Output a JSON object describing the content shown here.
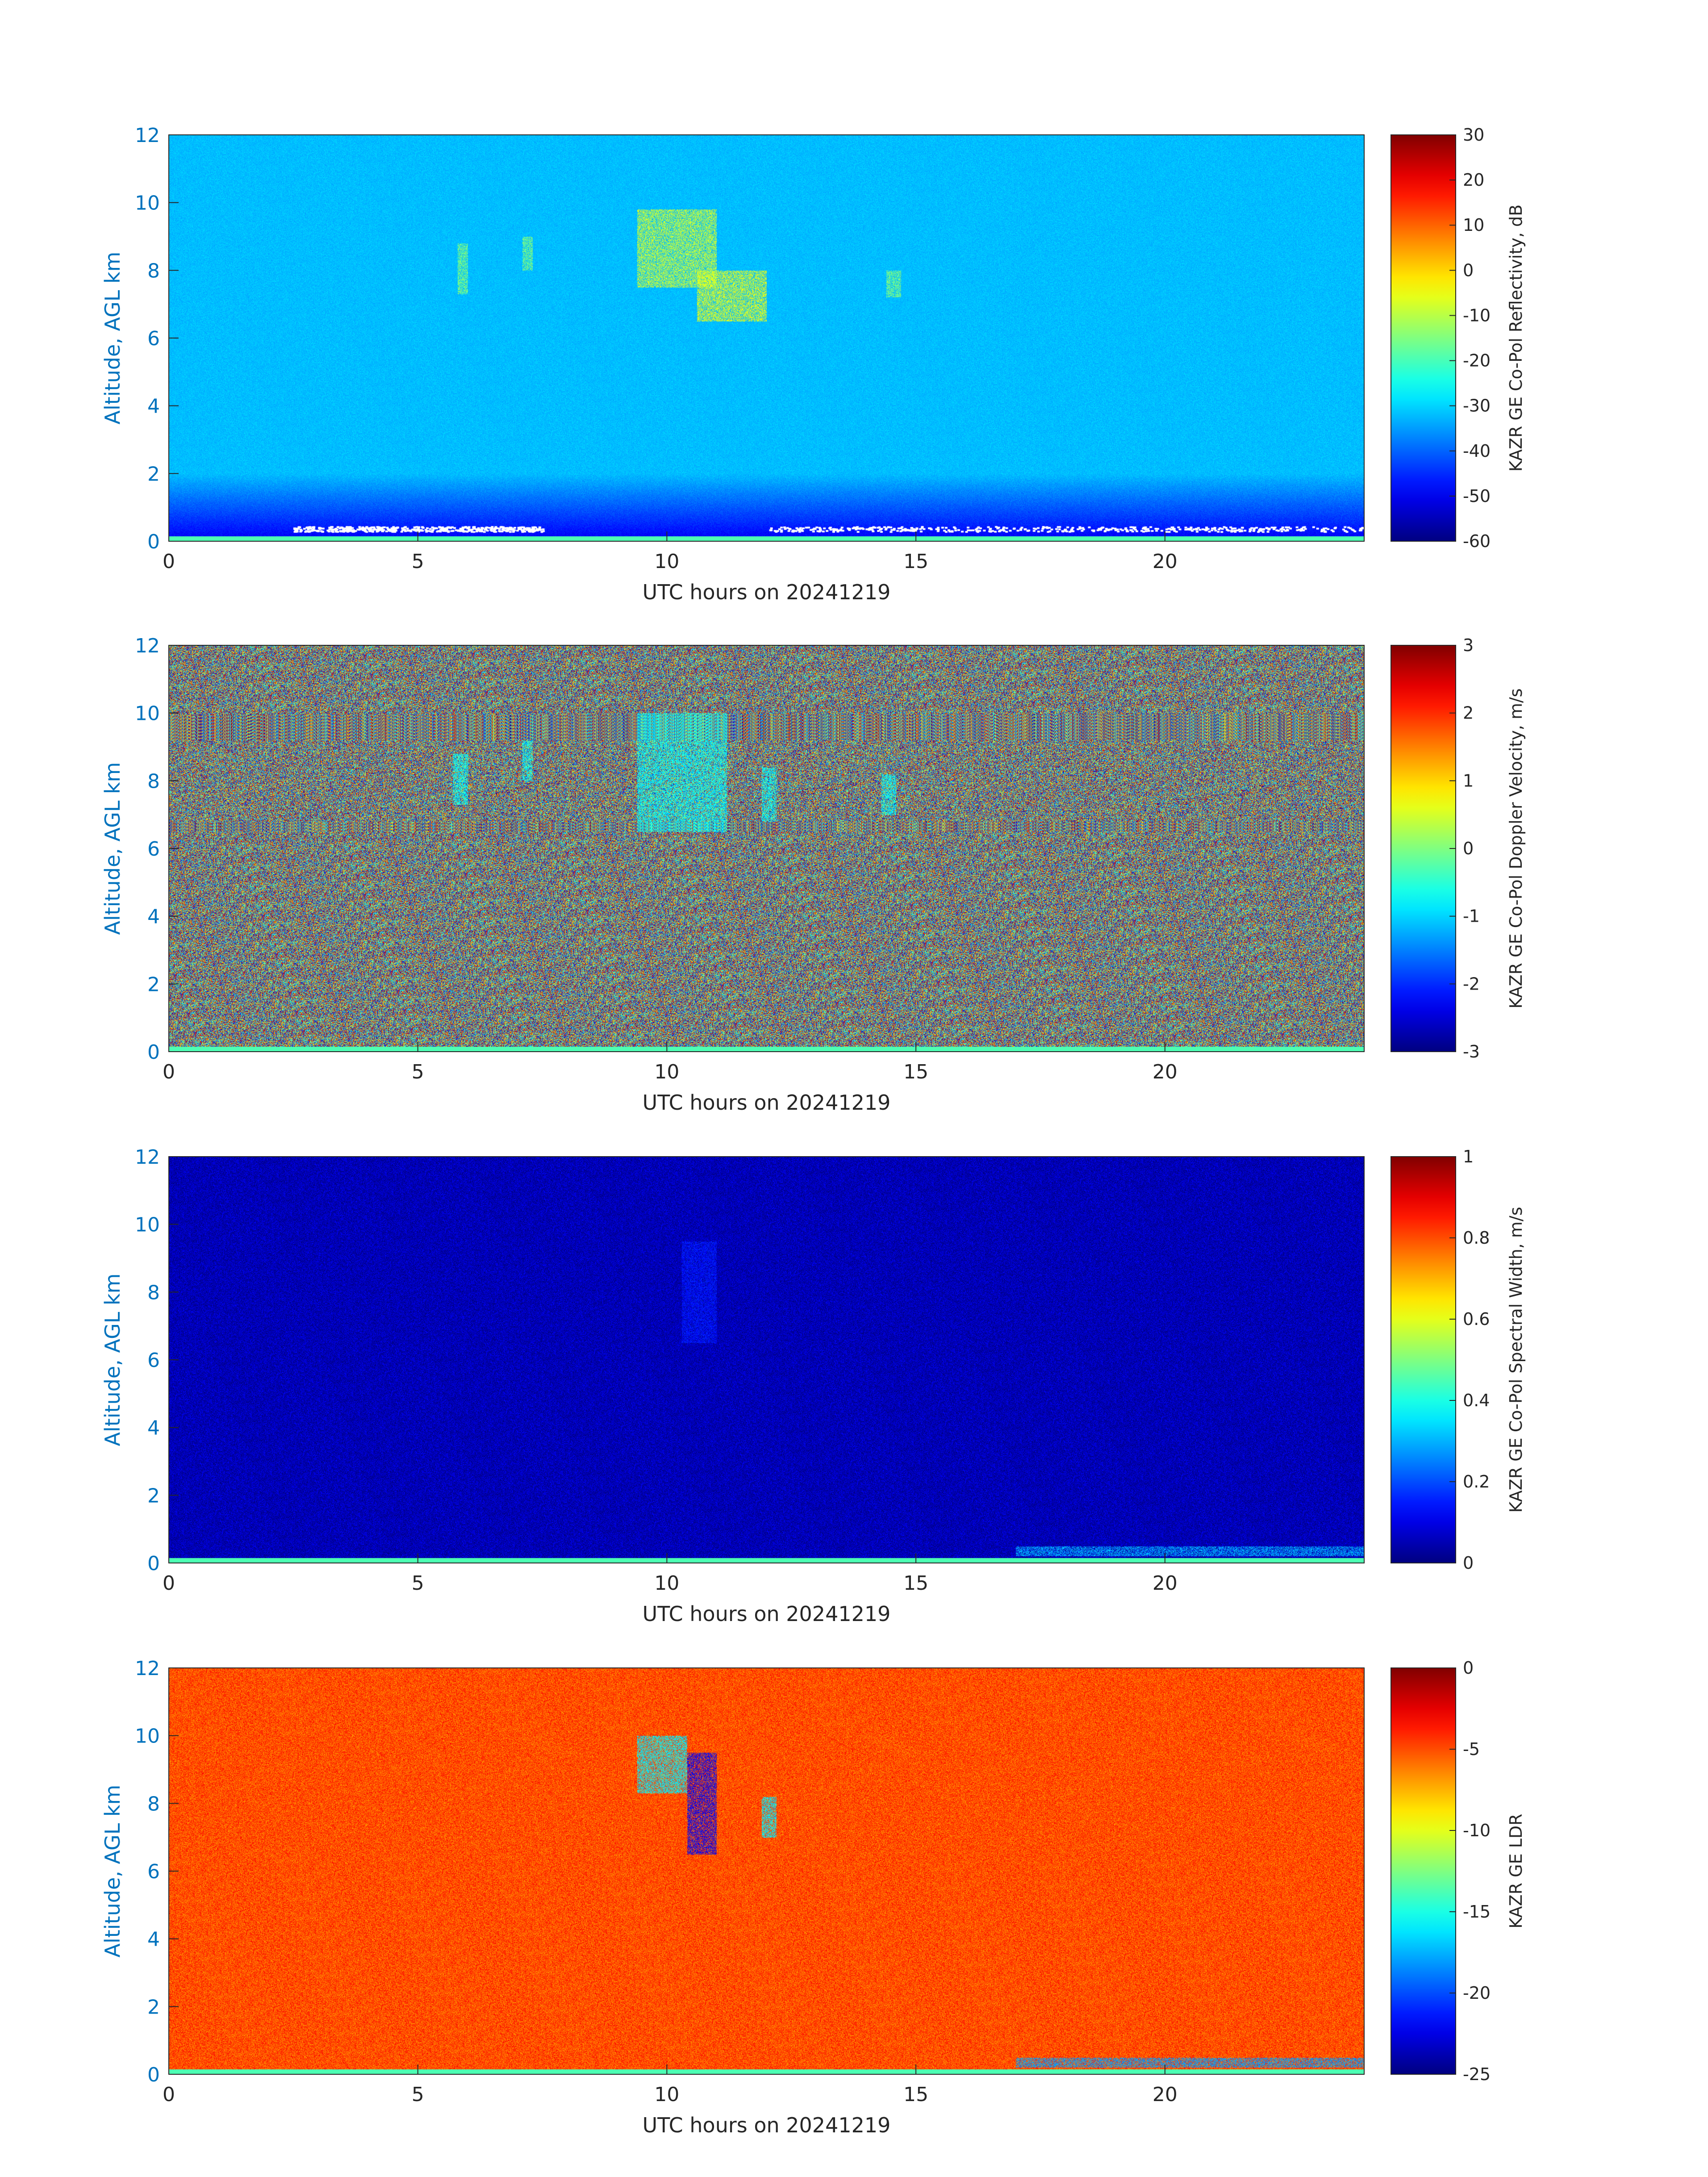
{
  "chart_data": [
    {
      "type": "heatmap",
      "xlabel": "UTC hours on 20241219",
      "ylabel": "Altitude, AGL km",
      "xlim": [
        0,
        24
      ],
      "ylim": [
        0,
        12
      ],
      "xticks": [
        "0",
        "5",
        "10",
        "15",
        "20"
      ],
      "yticks": [
        "0",
        "2",
        "4",
        "6",
        "8",
        "10",
        "12"
      ],
      "colorbar": {
        "label": "KAZR GE Co-Pol Reflectivity, dB",
        "range": [
          -60,
          30
        ],
        "ticks": [
          "30",
          "20",
          "10",
          "0",
          "-10",
          "-20",
          "-30",
          "-40",
          "-50",
          "-60"
        ],
        "colormap": "jet"
      },
      "background_value": -32,
      "features": [
        {
          "x_range": [
            9.4,
            11.0
          ],
          "y_range": [
            7.5,
            9.8
          ],
          "value": -8
        },
        {
          "x_range": [
            10.6,
            12.0
          ],
          "y_range": [
            6.5,
            8.0
          ],
          "value": -6
        },
        {
          "x_range": [
            5.8,
            6.0
          ],
          "y_range": [
            7.3,
            8.8
          ],
          "value": -15
        },
        {
          "x_range": [
            7.1,
            7.3
          ],
          "y_range": [
            8.0,
            9.0
          ],
          "value": -15
        },
        {
          "x_range": [
            14.4,
            14.7
          ],
          "y_range": [
            7.2,
            8.0
          ],
          "value": -15
        }
      ]
    },
    {
      "type": "heatmap",
      "xlabel": "UTC hours on 20241219",
      "ylabel": "Altitude, AGL km",
      "xlim": [
        0,
        24
      ],
      "ylim": [
        0,
        12
      ],
      "xticks": [
        "0",
        "5",
        "10",
        "15",
        "20"
      ],
      "yticks": [
        "0",
        "2",
        "4",
        "6",
        "8",
        "10",
        "12"
      ],
      "colorbar": {
        "label": "KAZR GE Co-Pol Doppler Velocity, m/s",
        "range": [
          -3,
          3
        ],
        "ticks": [
          "3",
          "2",
          "1",
          "0",
          "-1",
          "-2",
          "-3"
        ],
        "colormap": "jet"
      },
      "background_value": "random",
      "features": [
        {
          "x_range": [
            9.4,
            11.2
          ],
          "y_range": [
            6.5,
            10.0
          ],
          "value": -0.7
        },
        {
          "x_range": [
            11.9,
            12.2
          ],
          "y_range": [
            6.8,
            8.4
          ],
          "value": -0.7
        },
        {
          "x_range": [
            5.7,
            6.0
          ],
          "y_range": [
            7.3,
            8.8
          ],
          "value": -0.7
        },
        {
          "x_range": [
            7.1,
            7.3
          ],
          "y_range": [
            8.0,
            9.2
          ],
          "value": -0.7
        },
        {
          "x_range": [
            14.3,
            14.6
          ],
          "y_range": [
            7.0,
            8.2
          ],
          "value": -0.7
        }
      ]
    },
    {
      "type": "heatmap",
      "xlabel": "UTC hours on 20241219",
      "ylabel": "Altitude, AGL km",
      "xlim": [
        0,
        24
      ],
      "ylim": [
        0,
        12
      ],
      "xticks": [
        "0",
        "5",
        "10",
        "15",
        "20"
      ],
      "yticks": [
        "0",
        "2",
        "4",
        "6",
        "8",
        "10",
        "12"
      ],
      "colorbar": {
        "label": "KAZR GE Co-Pol Spectral Width, m/s",
        "range": [
          0,
          1
        ],
        "ticks": [
          "1",
          "0.8",
          "0.6",
          "0.4",
          "0.2",
          "0"
        ],
        "colormap": "jet"
      },
      "background_value": 0.05,
      "features": [
        {
          "x_range": [
            10.3,
            11.0
          ],
          "y_range": [
            6.5,
            9.5
          ],
          "value": 0.15
        },
        {
          "x_range": [
            17.0,
            24.0
          ],
          "y_range": [
            0.2,
            0.5
          ],
          "value": 0.3
        }
      ]
    },
    {
      "type": "heatmap",
      "xlabel": "UTC hours on 20241219",
      "ylabel": "Altitude, AGL km",
      "xlim": [
        0,
        24
      ],
      "ylim": [
        0,
        12
      ],
      "xticks": [
        "0",
        "5",
        "10",
        "15",
        "20"
      ],
      "yticks": [
        "0",
        "2",
        "4",
        "6",
        "8",
        "10",
        "12"
      ],
      "colorbar": {
        "label": "KAZR GE LDR",
        "range": [
          -25,
          0
        ],
        "ticks": [
          "0",
          "-5",
          "-10",
          "-15",
          "-20",
          "-25"
        ],
        "colormap": "jet"
      },
      "background_value": -5,
      "features": [
        {
          "x_range": [
            10.4,
            11.0
          ],
          "y_range": [
            6.5,
            9.5
          ],
          "value": -22
        },
        {
          "x_range": [
            9.4,
            10.4
          ],
          "y_range": [
            8.3,
            10.0
          ],
          "value": -16
        },
        {
          "x_range": [
            11.9,
            12.2
          ],
          "y_range": [
            7.0,
            8.2
          ],
          "value": -16
        },
        {
          "x_range": [
            17.0,
            24.0
          ],
          "y_range": [
            0.2,
            0.5
          ],
          "value": -18
        }
      ]
    }
  ]
}
